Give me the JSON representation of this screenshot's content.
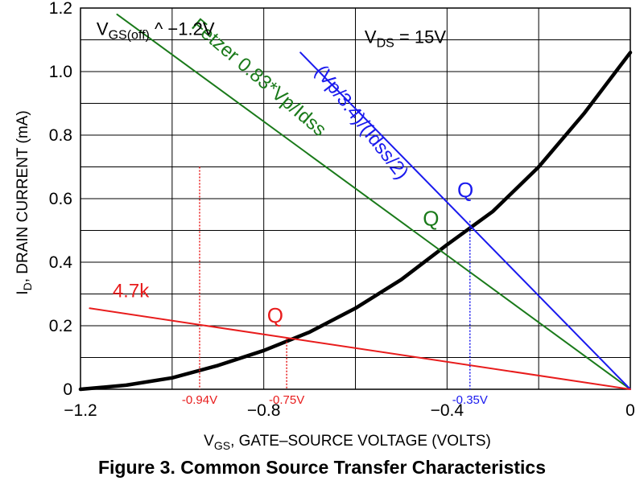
{
  "chart_data": {
    "type": "line",
    "title": "",
    "xlabel": "V_GS, GATE–SOURCE VOLTAGE (VOLTS)",
    "ylabel": "I_D, DRAIN CURRENT (mA)",
    "xlim": [
      -1.2,
      0
    ],
    "ylim": [
      0,
      1.2
    ],
    "grid": true,
    "x_ticks": [
      {
        "value": -1.2,
        "label": "−1.2"
      },
      {
        "value": -0.8,
        "label": "−0.8"
      },
      {
        "value": -0.4,
        "label": "−0.4"
      },
      {
        "value": 0,
        "label": "0"
      }
    ],
    "y_ticks": [
      {
        "value": 0,
        "label": "0"
      },
      {
        "value": 0.2,
        "label": "0.2"
      },
      {
        "value": 0.4,
        "label": "0.4"
      },
      {
        "value": 0.6,
        "label": "0.6"
      },
      {
        "value": 0.8,
        "label": "0.8"
      },
      {
        "value": 1.0,
        "label": "1.0"
      },
      {
        "value": 1.2,
        "label": "1.2"
      }
    ],
    "series": [
      {
        "color": "#000000",
        "x": [
          -1.2,
          -1.1,
          -1.0,
          -0.9,
          -0.8,
          -0.7,
          -0.6,
          -0.5,
          -0.4,
          -0.3,
          -0.2,
          -0.1,
          0.0
        ],
        "y": [
          0.0,
          0.013,
          0.036,
          0.075,
          0.122,
          0.18,
          0.255,
          0.345,
          0.455,
          0.56,
          0.7,
          0.87,
          1.06
        ]
      },
      {
        "name": "Fetzer 0.83*Vp/Idss",
        "color": "#1a7a1a",
        "x": [
          -1.12,
          0.0
        ],
        "y": [
          1.18,
          0.0
        ]
      },
      {
        "name": "(Vp/3.4)/(Idss/2)",
        "color": "#1a1aee",
        "x": [
          -0.72,
          0.0
        ],
        "y": [
          1.06,
          0.0
        ]
      },
      {
        "name": "4.7k",
        "color": "#e81c1c",
        "x": [
          -1.18,
          0.0
        ],
        "y": [
          0.255,
          0.0
        ]
      }
    ],
    "annotations": [
      {
        "text": "V",
        "sub": "GS(off)",
        "suffix": " ^   −1.2V",
        "x": -1.165,
        "y": 1.115
      },
      {
        "text": "V",
        "sub": "DS",
        "suffix": " = 15V",
        "x": -0.58,
        "y": 1.09
      }
    ],
    "series_labels": [
      {
        "text": "Fetzer 0.83*Vp/Idss",
        "color": "#1a7a1a",
        "x": -0.96,
        "y": 1.14,
        "angle": 40.5
      },
      {
        "text": "(Vp/3.4)/(Idss/2)",
        "color": "#1a1aee",
        "x": -0.69,
        "y": 1.0,
        "angle": 52
      },
      {
        "text": "4.7k",
        "color": "#e81c1c",
        "x": -1.13,
        "y": 0.29,
        "angle": 0
      }
    ],
    "q_points": [
      {
        "label": "Q",
        "color": "#e81c1c",
        "x": -0.75,
        "y": 0.16,
        "text_dx": -0.025,
        "text_dy": 0.05
      },
      {
        "label": "Q",
        "color": "#1a7a1a",
        "x": -0.42,
        "y": 0.46,
        "text_dx": -0.015,
        "text_dy": 0.055
      },
      {
        "label": "Q",
        "color": "#1a1aee",
        "x": -0.35,
        "y": 0.53,
        "text_dx": -0.01,
        "text_dy": 0.075
      }
    ],
    "vertical_markers": [
      {
        "x": -0.94,
        "y_top": 0.7,
        "color": "#e81c1c",
        "style": "dotted",
        "label": "-0.94V"
      },
      {
        "x": -0.75,
        "y_top": 0.16,
        "color": "#e81c1c",
        "style": "dotted",
        "label": "-0.75V"
      },
      {
        "x": -0.35,
        "y_top": 0.53,
        "color": "#1a1aee",
        "style": "dotted",
        "label": "-0.35V"
      }
    ]
  },
  "caption": "Figure 3. Common Source Transfer Characteristics"
}
